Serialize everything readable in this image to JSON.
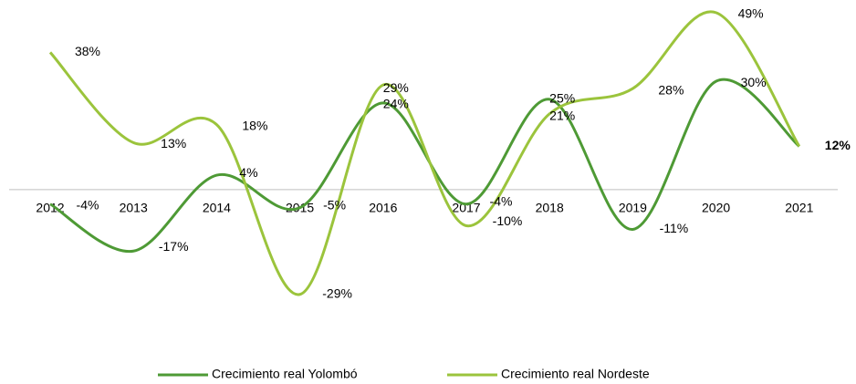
{
  "chart_data": {
    "type": "line",
    "categories": [
      "2012",
      "2013",
      "2014",
      "2015",
      "2016",
      "2017",
      "2018",
      "2019",
      "2020",
      "2021"
    ],
    "series": [
      {
        "name": "Crecimiento real Yolombó",
        "color": "#4e9a35",
        "values": [
          -4,
          -17,
          4,
          -5,
          24,
          -4,
          25,
          -11,
          30,
          12
        ],
        "value_labels": [
          "-4%",
          "-17%",
          "4%",
          "-5%",
          "24%",
          "-4%",
          "25%",
          "-11%",
          "30%",
          "12%"
        ]
      },
      {
        "name": "Crecimiento real Nordeste",
        "color": "#9bc43c",
        "values": [
          38,
          13,
          18,
          -29,
          29,
          -10,
          21,
          28,
          49,
          12
        ],
        "value_labels": [
          "38%",
          "13%",
          "18%",
          "-29%",
          "29%",
          "-10%",
          "21%",
          "28%",
          "49%",
          null
        ]
      }
    ],
    "ylim": [
      -35,
      52
    ],
    "legend": "bottom"
  }
}
